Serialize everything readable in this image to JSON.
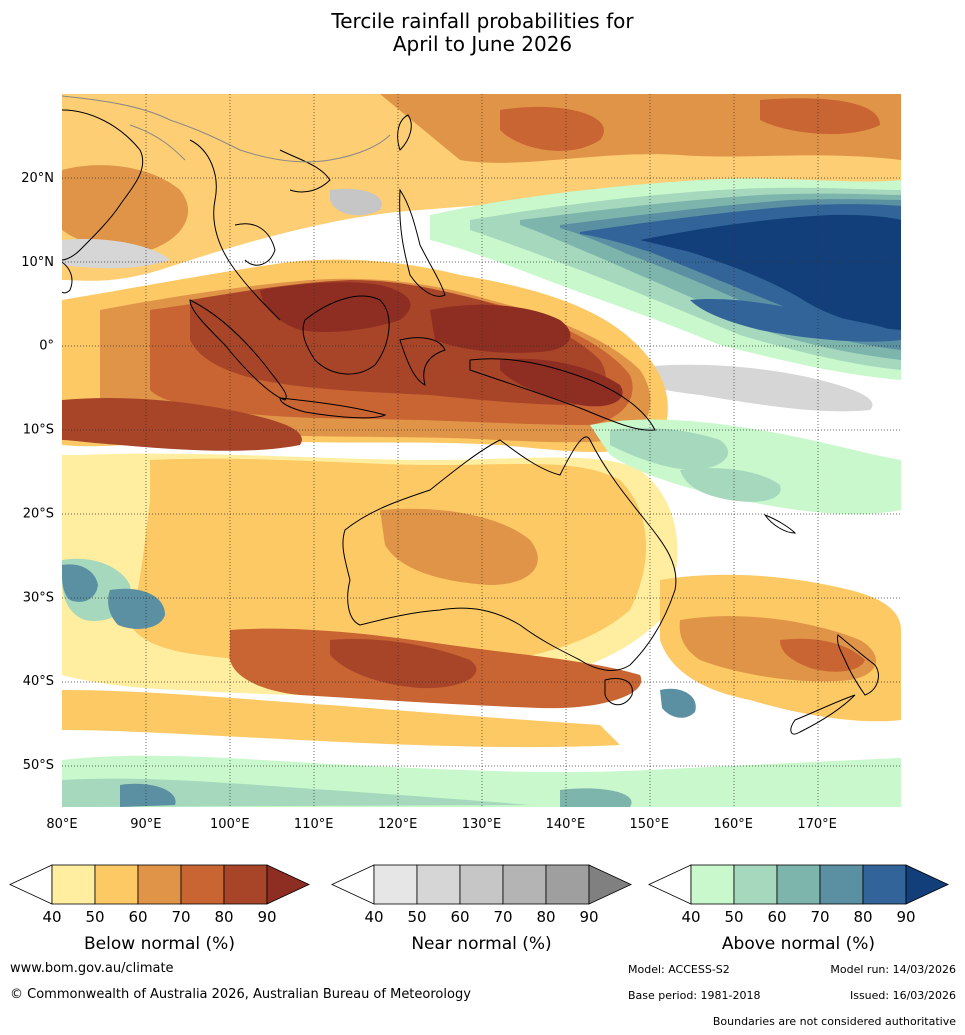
{
  "title": {
    "line1": "Tercile rainfall probabilities for",
    "line2": "April to June 2026"
  },
  "map": {
    "lon_range": [
      80,
      180
    ],
    "lat_range": [
      -55,
      30
    ],
    "lat_labels": [
      "20°N",
      "10°N",
      "0°",
      "10°S",
      "20°S",
      "30°S",
      "40°S",
      "50°S"
    ],
    "lat_values": [
      20,
      10,
      0,
      -10,
      -20,
      -30,
      -40,
      -50
    ],
    "lon_labels": [
      "80°E",
      "90°E",
      "100°E",
      "110°E",
      "120°E",
      "130°E",
      "140°E",
      "150°E",
      "160°E",
      "170°E"
    ],
    "lon_values": [
      80,
      90,
      100,
      110,
      120,
      130,
      140,
      150,
      160,
      170
    ],
    "gridlines": true
  },
  "colorbars": [
    {
      "title": "Below normal (%)",
      "ticks": [
        "40",
        "50",
        "60",
        "70",
        "80",
        "90"
      ],
      "colors": [
        "#ffeea0",
        "#fdc964",
        "#e09448",
        "#c96433",
        "#a84529"
      ],
      "over_color": "#8e2d22"
    },
    {
      "title": "Near normal (%)",
      "ticks": [
        "40",
        "50",
        "60",
        "70",
        "80",
        "90"
      ],
      "colors": [
        "#e6e6e6",
        "#d6d6d6",
        "#c6c6c6",
        "#b4b4b4",
        "#9f9f9f"
      ],
      "over_color": "#808080"
    },
    {
      "title": "Above normal (%)",
      "ticks": [
        "40",
        "50",
        "60",
        "70",
        "80",
        "90"
      ],
      "colors": [
        "#c8f8cc",
        "#a5d8bc",
        "#7db5ad",
        "#5b8fa2",
        "#326499"
      ],
      "over_color": "#123f79"
    }
  ],
  "footer": {
    "website": "www.bom.gov.au/climate",
    "copyright": "© Commonwealth of Australia 2026, Australian Bureau of Meteorology",
    "model": "Model: ACCESS-S2",
    "model_run": "Model run: 14/03/2026",
    "base_period": "Base period: 1981-2018",
    "issued": "Issued: 16/03/2026",
    "disclaimer": "Boundaries are not considered authoritative"
  }
}
